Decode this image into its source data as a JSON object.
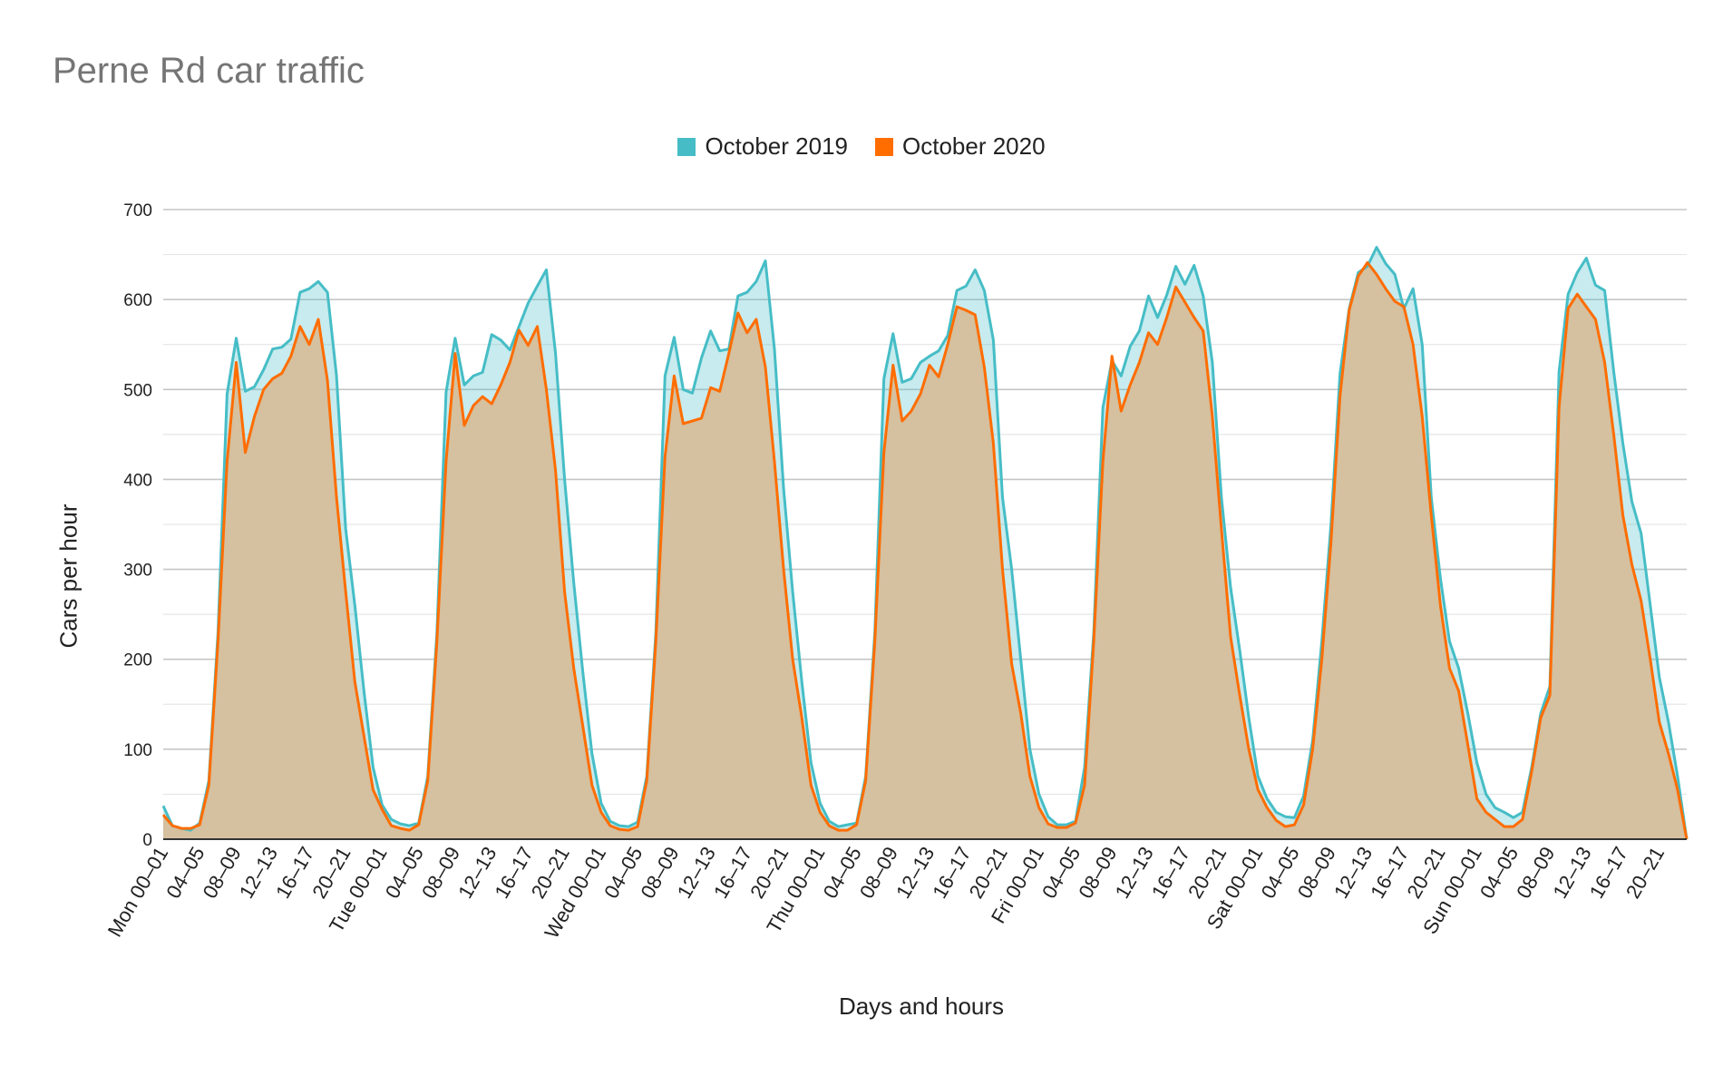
{
  "colors": {
    "series_2019": "#46BDC6",
    "series_2020": "#FF6D01",
    "overlap_fill": "#D5C09F"
  },
  "chart_data": {
    "type": "area",
    "title": "Perne Rd car traffic",
    "xlabel": "Days and hours",
    "ylabel": "Cars per hour",
    "ylim": [
      0,
      700
    ],
    "yticks": [
      0,
      100,
      200,
      300,
      400,
      500,
      600,
      700
    ],
    "legend_position": "top",
    "grid": true,
    "x_tick_labels": [
      "Mon 00–01",
      "04–05",
      "08–09",
      "12–13",
      "16–17",
      "20–21",
      "Tue 00–01",
      "04–05",
      "08–09",
      "12–13",
      "16–17",
      "20–21",
      "Wed 00–01",
      "04–05",
      "08–09",
      "12–13",
      "16–17",
      "20–21",
      "Thu 00–01",
      "04–05",
      "08–09",
      "12–13",
      "16–17",
      "20–21",
      "Fri 00–01",
      "04–05",
      "08–09",
      "12–13",
      "16–17",
      "20–21",
      "Sat 00–01",
      "04–05",
      "08–09",
      "12–13",
      "16–17",
      "20–21",
      "Sun 00–01",
      "04–05",
      "08–09",
      "12–13",
      "16–17",
      "20–21"
    ],
    "series": [
      {
        "name": "October 2019",
        "values": [
          37,
          15,
          12,
          10,
          18,
          65,
          230,
          495,
          557,
          498,
          503,
          522,
          545,
          547,
          556,
          608,
          612,
          620,
          608,
          515,
          345,
          260,
          165,
          80,
          38,
          22,
          17,
          15,
          18,
          70,
          230,
          497,
          557,
          505,
          515,
          519,
          561,
          555,
          544,
          570,
          596,
          615,
          633,
          540,
          400,
          285,
          185,
          95,
          40,
          20,
          15,
          14,
          19,
          70,
          230,
          515,
          558,
          500,
          496,
          535,
          565,
          543,
          545,
          604,
          608,
          620,
          643,
          545,
          390,
          275,
          175,
          85,
          40,
          20,
          14,
          16,
          18,
          70,
          230,
          512,
          562,
          508,
          512,
          530,
          537,
          543,
          560,
          610,
          615,
          633,
          610,
          555,
          380,
          300,
          200,
          100,
          50,
          25,
          16,
          16,
          20,
          80,
          230,
          480,
          532,
          515,
          548,
          565,
          604,
          580,
          605,
          637,
          617,
          638,
          604,
          530,
          380,
          280,
          210,
          135,
          70,
          45,
          30,
          25,
          24,
          48,
          110,
          220,
          350,
          518,
          590,
          630,
          637,
          658,
          640,
          628,
          590,
          612,
          550,
          380,
          290,
          220,
          190,
          140,
          85,
          50,
          35,
          30,
          24,
          30,
          80,
          140,
          170,
          520,
          606,
          630,
          646,
          616,
          610,
          520,
          440,
          375,
          340,
          260,
          180,
          130,
          70,
          0
        ]
      },
      {
        "name": "October 2020",
        "values": [
          27,
          15,
          12,
          12,
          16,
          60,
          220,
          420,
          530,
          430,
          470,
          500,
          512,
          518,
          537,
          570,
          550,
          578,
          510,
          380,
          275,
          175,
          115,
          55,
          33,
          15,
          12,
          10,
          16,
          65,
          220,
          420,
          540,
          460,
          482,
          492,
          484,
          505,
          530,
          566,
          549,
          570,
          500,
          410,
          275,
          190,
          125,
          60,
          30,
          15,
          11,
          10,
          14,
          65,
          220,
          425,
          515,
          462,
          465,
          468,
          502,
          498,
          540,
          585,
          563,
          578,
          525,
          420,
          300,
          200,
          135,
          60,
          30,
          15,
          10,
          10,
          16,
          65,
          220,
          430,
          527,
          465,
          476,
          495,
          527,
          514,
          550,
          592,
          588,
          583,
          525,
          440,
          300,
          195,
          140,
          70,
          35,
          17,
          13,
          13,
          18,
          60,
          220,
          420,
          537,
          476,
          505,
          530,
          563,
          550,
          580,
          614,
          597,
          580,
          565,
          470,
          345,
          225,
          160,
          100,
          55,
          35,
          21,
          14,
          16,
          38,
          100,
          200,
          330,
          493,
          588,
          626,
          641,
          628,
          612,
          598,
          592,
          550,
          470,
          360,
          260,
          190,
          165,
          105,
          45,
          30,
          22,
          14,
          14,
          22,
          75,
          135,
          160,
          480,
          590,
          606,
          592,
          578,
          530,
          450,
          360,
          305,
          265,
          200,
          130,
          95,
          55,
          0
        ]
      }
    ]
  }
}
